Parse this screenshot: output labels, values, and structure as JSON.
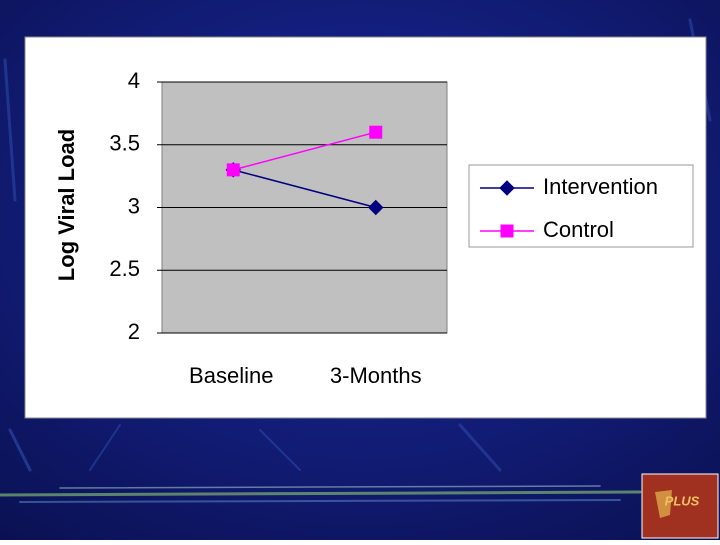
{
  "chart_data": {
    "type": "line",
    "ylabel": "Log Viral Load",
    "categories": [
      "Baseline",
      "3-Months"
    ],
    "series": [
      {
        "name": "Intervention",
        "color": "#000080",
        "marker": "diamond",
        "values": [
          3.3,
          3.0
        ]
      },
      {
        "name": "Control",
        "color": "#ff00ff",
        "marker": "square",
        "values": [
          3.3,
          3.6
        ]
      }
    ],
    "ylim": [
      2,
      4
    ],
    "yticks": [
      2,
      2.5,
      3,
      3.5,
      4
    ],
    "grid": true,
    "legend": "right"
  },
  "logo": {
    "text": "PLUS"
  }
}
